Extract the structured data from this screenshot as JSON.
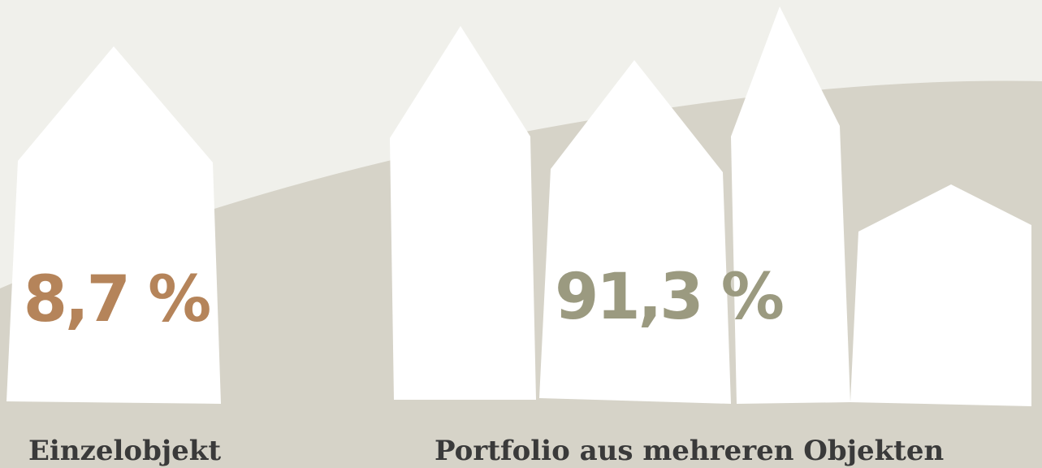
{
  "items": [
    {
      "value": "8,7 %",
      "label": "Einzelobjekt"
    },
    {
      "value": "91,3 %",
      "label": "Portfolio aus mehreren Objekten"
    }
  ]
}
